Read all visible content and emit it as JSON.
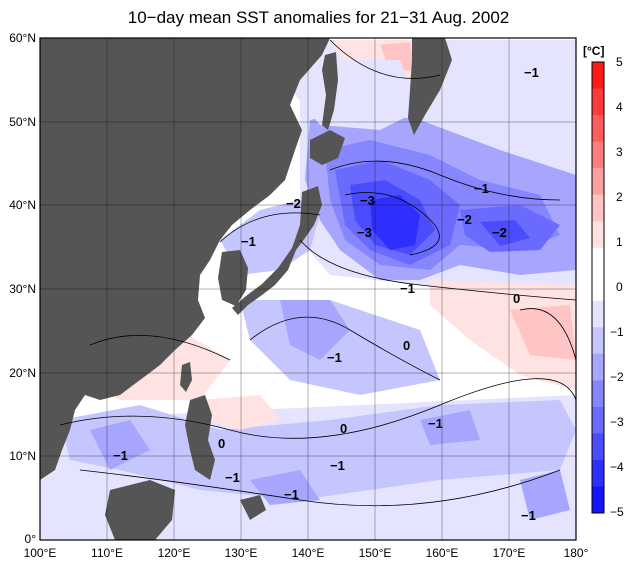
{
  "title": "10−day mean SST anomalies for 21−31 Aug. 2002",
  "unit_label": "[°C]",
  "map": {
    "lon_range": [
      100,
      180
    ],
    "lat_range": [
      0,
      60
    ],
    "lon_ticks": [
      "100°E",
      "110°E",
      "120°E",
      "130°E",
      "140°E",
      "150°E",
      "160°E",
      "170°E",
      "180°"
    ],
    "lat_ticks": [
      "0°",
      "10°N",
      "20°N",
      "30°N",
      "40°N",
      "50°N",
      "60°N"
    ],
    "grid": true,
    "land_color": "#555555"
  },
  "colorbar": {
    "labels": [
      "5",
      "4",
      "3",
      "2",
      "1",
      "0",
      "−1",
      "−2",
      "−3",
      "−4",
      "−5"
    ],
    "colors": [
      "#ff1a1a",
      "#ff3a3a",
      "#ff5c5c",
      "#ff7f7f",
      "#ffa0a0",
      "#ffc4c4",
      "#ffe2e2",
      "#ffffff",
      "#ffffff",
      "#e4e4ff",
      "#c6c6ff",
      "#a6a6ff",
      "#8686ff",
      "#6a6aff",
      "#4c4cff",
      "#2e2eff",
      "#1414ff"
    ]
  },
  "contour_labels": [
    {
      "text": "−1"
    },
    {
      "text": "−2"
    },
    {
      "text": "−1"
    },
    {
      "text": "−3"
    },
    {
      "text": "−3"
    },
    {
      "text": "−1"
    },
    {
      "text": "−2"
    },
    {
      "text": "−2"
    },
    {
      "text": "−1"
    },
    {
      "text": "0"
    },
    {
      "text": "0"
    },
    {
      "text": "−1"
    },
    {
      "text": "0"
    },
    {
      "text": "−1"
    },
    {
      "text": "−1"
    },
    {
      "text": "0"
    },
    {
      "text": "−1"
    },
    {
      "text": "−1"
    },
    {
      "text": "−1"
    },
    {
      "text": "−1"
    }
  ]
}
